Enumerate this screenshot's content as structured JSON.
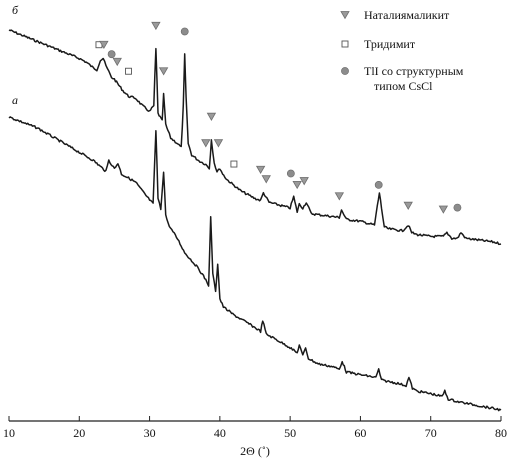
{
  "chart_data": {
    "type": "line",
    "title": "",
    "xlabel": "2Θ (˚)",
    "ylabel": "",
    "xlim": [
      10,
      80
    ],
    "xticks": [
      10,
      20,
      30,
      40,
      50,
      60,
      70,
      80
    ],
    "grid": false,
    "legend_position": "top-right",
    "legend": [
      {
        "marker": "triangle",
        "color": "#9a9a9a",
        "label": "Наталиямаликит"
      },
      {
        "marker": "square",
        "color": "#ffffff",
        "label": "Тридимит"
      },
      {
        "marker": "circle",
        "color": "#8c8c8c",
        "label_lines": [
          "TlI со структурным",
          "типом CsCl"
        ]
      }
    ],
    "series": [
      {
        "name": "б",
        "x": [
          10,
          12,
          14,
          16,
          18,
          20,
          21,
          22,
          22.5,
          23.0,
          23.4,
          23.8,
          24.2,
          24.6,
          25.0,
          25.6,
          26.2,
          27,
          28,
          29,
          30,
          30.6,
          30.9,
          31.2,
          31.5,
          31.8,
          32.0,
          32.3,
          32.6,
          33,
          34,
          34.5,
          34.8,
          35.0,
          35.2,
          35.5,
          36,
          37,
          38,
          38.5,
          38.8,
          39.2,
          39.6,
          40.0,
          40.4,
          41,
          42,
          43,
          44,
          45,
          45.8,
          46.2,
          47,
          48,
          49,
          50.0,
          50.5,
          51,
          51.3,
          51.8,
          52.3,
          53,
          55,
          57,
          57.3,
          58,
          60,
          62,
          62.4,
          62.7,
          63.0,
          63.4,
          64,
          66,
          66.8,
          67.3,
          68,
          70,
          71.8,
          72.3,
          73,
          73.8,
          74.3,
          75,
          77,
          79,
          80
        ],
        "y": [
          100,
          97,
          94,
          91,
          88,
          85,
          83,
          80,
          79,
          84,
          85,
          81,
          78,
          75,
          74,
          71,
          68,
          65,
          64,
          60,
          57,
          60,
          90,
          56,
          54,
          52,
          66,
          50,
          47,
          43,
          40,
          38,
          60,
          87,
          64,
          40,
          34,
          31,
          29,
          27,
          42,
          30,
          25,
          27,
          24,
          21,
          18,
          15,
          13,
          11,
          10,
          14,
          9,
          8,
          7,
          6,
          12,
          4,
          8,
          6,
          9,
          3,
          2,
          1,
          5,
          0,
          -1,
          -3,
          7,
          14,
          6,
          -4,
          -5,
          -6,
          -3,
          -7,
          -8,
          -9,
          -9,
          -7,
          -10,
          -10,
          -7,
          -10,
          -11,
          -12,
          -13
        ]
      },
      {
        "name": "а",
        "x": [
          10,
          12,
          14,
          16,
          18,
          20,
          22,
          23.8,
          24.2,
          25,
          25.5,
          26,
          28,
          29.5,
          30.5,
          30.9,
          31.2,
          31.6,
          32.0,
          32.3,
          32.6,
          33,
          34,
          35,
          36,
          37,
          38,
          38.4,
          38.7,
          39.0,
          39.4,
          39.7,
          40.0,
          40.5,
          42,
          44,
          45.8,
          46.1,
          46.6,
          48,
          50,
          51.0,
          51.3,
          51.8,
          52.2,
          52.6,
          54,
          56,
          57.0,
          57.4,
          58,
          60,
          62.2,
          62.6,
          63,
          65,
          66.5,
          66.9,
          67.4,
          68,
          70,
          71.6,
          72.0,
          72.5,
          74,
          76,
          78,
          80
        ],
        "y": [
          100,
          98,
          96,
          93,
          90,
          87,
          84,
          80,
          84,
          81,
          83,
          79,
          76,
          71,
          68,
          95,
          70,
          66,
          80,
          64,
          61,
          59,
          55,
          50,
          47,
          44,
          40,
          38,
          63,
          42,
          36,
          46,
          33,
          30,
          27,
          24,
          21,
          25,
          20,
          18,
          15,
          13,
          16,
          12,
          15,
          11,
          9,
          8,
          7,
          10,
          6,
          5,
          4,
          7,
          3,
          2,
          1,
          4,
          0,
          -1,
          -2,
          -3,
          -1,
          -4,
          -5,
          -6,
          -7,
          -8
        ]
      }
    ],
    "markers": [
      {
        "series": "б",
        "type": "square",
        "x": 22.8,
        "y": 88
      },
      {
        "series": "б",
        "type": "triangle",
        "x": 23.5,
        "y": 88
      },
      {
        "series": "б",
        "type": "circle",
        "x": 24.6,
        "y": 83
      },
      {
        "series": "б",
        "type": "triangle",
        "x": 25.4,
        "y": 79
      },
      {
        "series": "б",
        "type": "square",
        "x": 27.0,
        "y": 74
      },
      {
        "series": "б",
        "type": "triangle",
        "x": 30.9,
        "y": 98
      },
      {
        "series": "б",
        "type": "triangle",
        "x": 32.0,
        "y": 74
      },
      {
        "series": "б",
        "type": "circle",
        "x": 35.0,
        "y": 95
      },
      {
        "series": "б",
        "type": "triangle",
        "x": 38.0,
        "y": 36
      },
      {
        "series": "б",
        "type": "triangle",
        "x": 38.8,
        "y": 50
      },
      {
        "series": "б",
        "type": "triangle",
        "x": 39.8,
        "y": 36
      },
      {
        "series": "б",
        "type": "square",
        "x": 42.0,
        "y": 25
      },
      {
        "series": "б",
        "type": "triangle",
        "x": 45.8,
        "y": 22
      },
      {
        "series": "б",
        "type": "triangle",
        "x": 46.6,
        "y": 17
      },
      {
        "series": "б",
        "type": "circle",
        "x": 50.1,
        "y": 20
      },
      {
        "series": "б",
        "type": "triangle",
        "x": 51.0,
        "y": 14
      },
      {
        "series": "б",
        "type": "triangle",
        "x": 52.0,
        "y": 16
      },
      {
        "series": "б",
        "type": "triangle",
        "x": 57.0,
        "y": 8
      },
      {
        "series": "б",
        "type": "circle",
        "x": 62.6,
        "y": 14
      },
      {
        "series": "б",
        "type": "triangle",
        "x": 66.8,
        "y": 3
      },
      {
        "series": "б",
        "type": "triangle",
        "x": 71.8,
        "y": 1
      },
      {
        "series": "б",
        "type": "circle",
        "x": 73.8,
        "y": 2
      }
    ]
  }
}
